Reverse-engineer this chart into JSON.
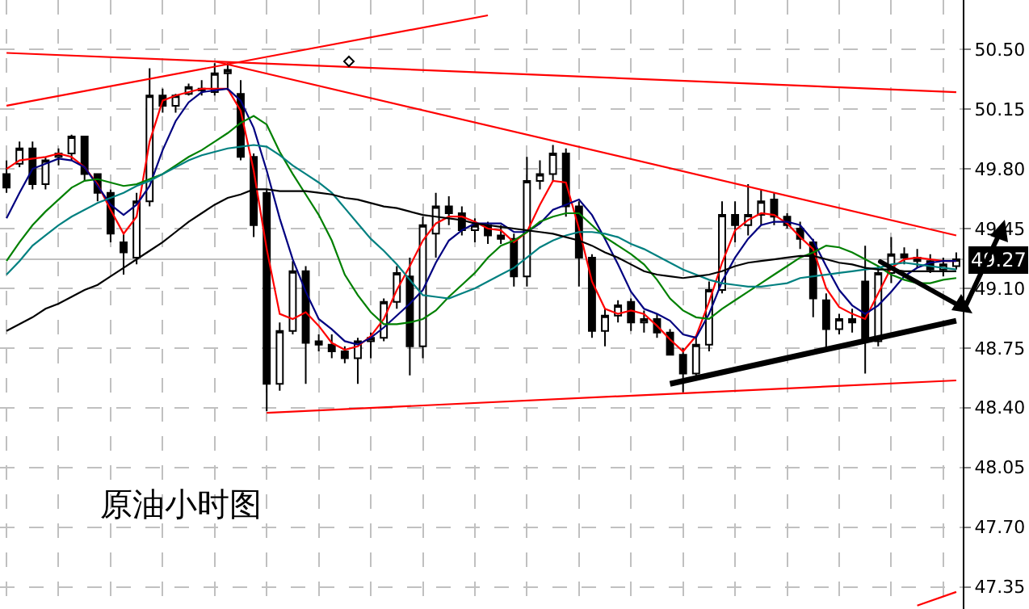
{
  "chart_data": {
    "type": "candlestick",
    "categories": [
      null,
      null,
      null,
      null,
      null,
      null,
      null,
      null,
      null,
      null,
      null,
      null,
      null,
      null,
      null,
      null,
      null,
      null,
      null,
      null,
      null,
      null,
      null,
      null,
      null,
      null,
      null,
      null,
      null,
      null,
      null,
      null,
      null,
      null,
      null,
      null,
      null,
      null,
      null,
      null,
      null,
      null,
      null,
      null,
      null,
      null,
      null,
      null,
      null,
      null,
      null,
      null,
      null,
      null,
      null,
      null,
      null,
      null,
      null,
      null,
      null,
      null,
      null,
      null,
      null,
      null,
      null,
      null,
      null,
      null,
      null,
      null,
      null,
      null
    ],
    "ohlc": [
      [
        49.77,
        49.85,
        49.66,
        49.69
      ],
      [
        49.83,
        49.96,
        49.81,
        49.92
      ],
      [
        49.92,
        49.96,
        49.68,
        49.71
      ],
      [
        49.71,
        49.87,
        49.68,
        49.85
      ],
      [
        49.87,
        49.92,
        49.82,
        49.89
      ],
      [
        49.89,
        50.0,
        49.85,
        49.99
      ],
      [
        49.99,
        49.99,
        49.73,
        49.77
      ],
      [
        49.77,
        49.77,
        49.61,
        49.66
      ],
      [
        49.66,
        49.68,
        49.37,
        49.42
      ],
      [
        49.37,
        49.42,
        49.18,
        49.31
      ],
      [
        49.28,
        49.66,
        49.24,
        49.61
      ],
      [
        49.61,
        50.39,
        49.58,
        50.23
      ],
      [
        50.23,
        50.27,
        50.13,
        50.17
      ],
      [
        50.17,
        50.24,
        50.13,
        50.23
      ],
      [
        50.24,
        50.3,
        50.23,
        50.28
      ],
      [
        50.27,
        50.32,
        50.23,
        50.26
      ],
      [
        50.25,
        50.42,
        50.23,
        50.36
      ],
      [
        50.36,
        50.42,
        50.26,
        50.38
      ],
      [
        50.24,
        50.32,
        49.85,
        49.87
      ],
      [
        49.87,
        49.89,
        49.4,
        49.47
      ],
      [
        49.66,
        49.68,
        48.38,
        48.54
      ],
      [
        48.54,
        48.9,
        48.5,
        48.85
      ],
      [
        48.85,
        49.26,
        48.83,
        49.2
      ],
      [
        49.2,
        49.23,
        48.54,
        48.78
      ],
      [
        48.79,
        48.83,
        48.73,
        48.77
      ],
      [
        48.77,
        48.83,
        48.69,
        48.73
      ],
      [
        48.73,
        48.76,
        48.66,
        48.69
      ],
      [
        48.69,
        48.81,
        48.54,
        48.79
      ],
      [
        48.79,
        48.84,
        48.69,
        48.81
      ],
      [
        48.81,
        49.04,
        48.79,
        49.02
      ],
      [
        49.02,
        49.23,
        48.98,
        49.19
      ],
      [
        49.17,
        49.28,
        48.59,
        48.76
      ],
      [
        48.76,
        49.52,
        48.69,
        49.47
      ],
      [
        49.42,
        49.66,
        49.28,
        49.58
      ],
      [
        49.58,
        49.64,
        49.47,
        49.54
      ],
      [
        49.54,
        49.58,
        49.41,
        49.44
      ],
      [
        49.44,
        49.51,
        49.37,
        49.47
      ],
      [
        49.47,
        49.49,
        49.36,
        49.41
      ],
      [
        49.41,
        49.47,
        49.36,
        49.39
      ],
      [
        49.39,
        49.42,
        49.11,
        49.17
      ],
      [
        49.17,
        49.87,
        49.11,
        49.73
      ],
      [
        49.73,
        49.85,
        49.68,
        49.77
      ],
      [
        49.77,
        49.94,
        49.73,
        49.89
      ],
      [
        49.89,
        49.92,
        49.52,
        49.58
      ],
      [
        49.58,
        49.61,
        49.11,
        49.28
      ],
      [
        49.28,
        49.3,
        48.81,
        48.85
      ],
      [
        48.85,
        48.98,
        48.76,
        48.94
      ],
      [
        48.94,
        49.03,
        48.9,
        49.0
      ],
      [
        49.02,
        49.04,
        48.85,
        48.9
      ],
      [
        48.9,
        48.97,
        48.84,
        48.92
      ],
      [
        48.92,
        48.95,
        48.81,
        48.84
      ],
      [
        48.84,
        48.86,
        48.71,
        48.71
      ],
      [
        48.71,
        48.75,
        48.49,
        48.6
      ],
      [
        48.6,
        48.81,
        48.56,
        48.77
      ],
      [
        48.77,
        49.14,
        48.73,
        49.09
      ],
      [
        49.09,
        49.61,
        49.07,
        49.53
      ],
      [
        49.53,
        49.61,
        49.37,
        49.47
      ],
      [
        49.47,
        49.71,
        49.41,
        49.53
      ],
      [
        49.53,
        49.68,
        49.47,
        49.61
      ],
      [
        49.62,
        49.66,
        49.47,
        49.52
      ],
      [
        49.52,
        49.54,
        49.45,
        49.47
      ],
      [
        49.45,
        49.49,
        49.33,
        49.39
      ],
      [
        49.37,
        49.39,
        48.93,
        49.04
      ],
      [
        49.03,
        49.07,
        48.73,
        48.86
      ],
      [
        48.86,
        48.95,
        48.83,
        48.92
      ],
      [
        48.92,
        48.98,
        48.84,
        48.9
      ],
      [
        49.14,
        49.35,
        48.6,
        48.79
      ],
      [
        48.79,
        49.23,
        48.76,
        49.19
      ],
      [
        49.19,
        49.4,
        49.13,
        49.3
      ],
      [
        49.3,
        49.34,
        49.24,
        49.28
      ],
      [
        49.28,
        49.33,
        49.22,
        49.26
      ],
      [
        49.26,
        49.3,
        49.19,
        49.21
      ],
      [
        49.21,
        49.28,
        49.17,
        49.24
      ],
      [
        49.23,
        49.31,
        49.21,
        49.27
      ]
    ],
    "series": [
      {
        "type": "line",
        "color": "#ff0000",
        "values": [
          49.8,
          49.85,
          49.86,
          49.87,
          49.89,
          49.87,
          49.81,
          49.71,
          49.56,
          49.42,
          49.52,
          49.96,
          50.2,
          50.23,
          50.25,
          50.27,
          50.27,
          50.27,
          50.14,
          49.79,
          49.33,
          48.95,
          48.92,
          48.96,
          48.88,
          48.78,
          48.74,
          48.76,
          48.82,
          48.92,
          49.09,
          49.23,
          49.38,
          49.48,
          49.52,
          49.52,
          49.49,
          49.45,
          49.44,
          49.37,
          49.43,
          49.59,
          49.73,
          49.72,
          49.45,
          49.14,
          48.98,
          48.95,
          48.97,
          48.95,
          48.88,
          48.8,
          48.73,
          48.82,
          49.02,
          49.25,
          49.44,
          49.5,
          49.54,
          49.53,
          49.48,
          49.4,
          49.33,
          49.1,
          48.99,
          48.95,
          48.92,
          49.07,
          49.22,
          49.27,
          49.28,
          49.27,
          49.26,
          49.26
        ]
      },
      {
        "type": "line",
        "color": "#000080",
        "values": [
          49.51,
          49.66,
          49.8,
          49.83,
          49.86,
          49.85,
          49.81,
          49.7,
          49.59,
          49.53,
          49.59,
          49.7,
          49.91,
          50.08,
          50.19,
          50.25,
          50.26,
          50.27,
          50.2,
          50.04,
          49.79,
          49.51,
          49.27,
          49.08,
          48.92,
          48.86,
          48.79,
          48.77,
          48.81,
          48.87,
          48.94,
          49.01,
          49.09,
          49.25,
          49.38,
          49.44,
          49.48,
          49.48,
          49.48,
          49.43,
          49.43,
          49.48,
          49.56,
          49.59,
          49.62,
          49.53,
          49.39,
          49.24,
          49.08,
          48.98,
          48.95,
          48.91,
          48.83,
          48.81,
          48.95,
          49.14,
          49.28,
          49.39,
          49.47,
          49.49,
          49.49,
          49.47,
          49.38,
          49.23,
          49.09,
          49.0,
          48.95,
          49.0,
          49.08,
          49.17,
          49.22,
          49.25,
          49.26,
          49.26
        ]
      },
      {
        "type": "line",
        "color": "#008000",
        "values": [
          49.26,
          49.37,
          49.47,
          49.55,
          49.62,
          49.69,
          49.73,
          49.74,
          49.72,
          49.7,
          49.71,
          49.74,
          49.77,
          49.82,
          49.87,
          49.91,
          49.96,
          50.01,
          50.07,
          50.11,
          50.06,
          49.9,
          49.77,
          49.65,
          49.53,
          49.38,
          49.18,
          49.06,
          48.96,
          48.89,
          48.89,
          48.9,
          48.92,
          48.97,
          49.05,
          49.12,
          49.19,
          49.28,
          49.35,
          49.38,
          49.43,
          49.49,
          49.52,
          49.54,
          49.54,
          49.47,
          49.4,
          49.35,
          49.3,
          49.24,
          49.15,
          49.04,
          48.97,
          48.93,
          48.92,
          48.98,
          49.03,
          49.08,
          49.13,
          49.18,
          49.23,
          49.28,
          49.31,
          49.35,
          49.34,
          49.31,
          49.27,
          49.23,
          49.18,
          49.15,
          49.13,
          49.13,
          49.15,
          49.16
        ]
      },
      {
        "type": "line",
        "color": "#008080",
        "values": [
          49.18,
          49.26,
          49.35,
          49.41,
          49.47,
          49.52,
          49.56,
          49.6,
          49.63,
          49.66,
          49.7,
          49.73,
          49.77,
          49.81,
          49.85,
          49.88,
          49.9,
          49.92,
          49.93,
          49.94,
          49.93,
          49.88,
          49.82,
          49.77,
          49.72,
          49.66,
          49.57,
          49.48,
          49.39,
          49.32,
          49.24,
          49.15,
          49.06,
          49.05,
          49.04,
          49.07,
          49.1,
          49.14,
          49.18,
          49.22,
          49.28,
          49.34,
          49.38,
          49.41,
          49.43,
          49.43,
          49.42,
          49.4,
          49.36,
          49.33,
          49.29,
          49.25,
          49.21,
          49.18,
          49.15,
          49.13,
          49.12,
          49.11,
          49.11,
          49.12,
          49.13,
          49.16,
          49.17,
          49.18,
          49.19,
          49.2,
          49.21,
          49.22,
          49.24,
          49.25,
          49.24,
          49.23,
          49.22,
          49.21
        ]
      },
      {
        "type": "line",
        "color": "#000000",
        "values": [
          48.85,
          48.89,
          48.93,
          48.98,
          49.01,
          49.05,
          49.09,
          49.12,
          49.17,
          49.22,
          49.27,
          49.32,
          49.37,
          49.43,
          49.49,
          49.54,
          49.59,
          49.63,
          49.65,
          49.68,
          49.68,
          49.67,
          49.67,
          49.67,
          49.66,
          49.65,
          49.63,
          49.62,
          49.6,
          49.58,
          49.57,
          49.55,
          49.53,
          49.52,
          49.51,
          49.5,
          49.48,
          49.47,
          49.46,
          49.45,
          49.44,
          49.43,
          49.42,
          49.4,
          49.38,
          49.35,
          49.31,
          49.28,
          49.24,
          49.2,
          49.18,
          49.17,
          49.16,
          49.17,
          49.18,
          49.2,
          49.23,
          49.25,
          49.26,
          49.27,
          49.28,
          49.29,
          49.29,
          49.27,
          49.25,
          49.24,
          49.22,
          49.21,
          49.21,
          49.2,
          49.2,
          49.2,
          49.2,
          49.2
        ]
      },
      {
        "type": "line",
        "color": "#ff0000",
        "values": [
          50.48,
          null,
          null,
          null,
          null,
          null,
          null,
          null,
          null,
          null,
          null,
          null,
          null,
          null,
          null,
          null,
          null,
          null,
          null,
          null,
          null,
          null,
          null,
          null,
          null,
          null,
          null,
          null,
          null,
          null,
          null,
          null,
          null,
          null,
          null,
          null,
          null,
          null,
          null,
          null,
          null,
          null,
          null,
          null,
          null,
          null,
          null,
          null,
          null,
          null,
          null,
          null,
          null,
          null,
          null,
          null,
          null,
          null,
          null,
          null,
          null,
          null,
          null,
          null,
          null,
          null,
          null,
          null,
          null,
          null,
          null,
          null,
          null,
          50.25
        ]
      },
      {
        "type": "line",
        "color": "#ff0000",
        "values": [
          50.17,
          null,
          null,
          null,
          null,
          null,
          null,
          null,
          null,
          null,
          null,
          null,
          null,
          null,
          null,
          null,
          null,
          null,
          null,
          null,
          null,
          null,
          null,
          null,
          null,
          null,
          null,
          null,
          null,
          null,
          null,
          null,
          null,
          null,
          null,
          null,
          null,
          50.7,
          null,
          null,
          null,
          null,
          null,
          null,
          null,
          null,
          null,
          null,
          null,
          null,
          null,
          null,
          null,
          null,
          null,
          null,
          null,
          null,
          null,
          null,
          null,
          null,
          null,
          null,
          null,
          null,
          null,
          null,
          null,
          null,
          null,
          null,
          null,
          null
        ]
      },
      {
        "type": "line",
        "color": "#ff0000",
        "values": [
          null,
          null,
          null,
          null,
          null,
          null,
          null,
          null,
          null,
          null,
          null,
          null,
          null,
          null,
          null,
          null,
          50.43,
          null,
          null,
          null,
          null,
          null,
          null,
          null,
          null,
          null,
          null,
          null,
          null,
          null,
          null,
          null,
          null,
          null,
          null,
          null,
          null,
          null,
          null,
          null,
          null,
          null,
          null,
          null,
          null,
          null,
          null,
          null,
          null,
          null,
          null,
          null,
          null,
          null,
          null,
          null,
          null,
          null,
          null,
          null,
          null,
          null,
          null,
          null,
          null,
          null,
          null,
          null,
          null,
          null,
          null,
          null,
          null,
          49.41
        ]
      },
      {
        "type": "line",
        "color": "#ff0000",
        "values": [
          null,
          null,
          null,
          null,
          null,
          null,
          null,
          null,
          null,
          null,
          null,
          null,
          null,
          null,
          null,
          null,
          null,
          null,
          null,
          null,
          48.37,
          null,
          null,
          null,
          null,
          null,
          null,
          null,
          null,
          null,
          null,
          null,
          null,
          null,
          null,
          null,
          null,
          null,
          null,
          null,
          null,
          null,
          null,
          null,
          null,
          null,
          null,
          null,
          null,
          null,
          null,
          null,
          null,
          null,
          null,
          null,
          null,
          null,
          null,
          null,
          null,
          null,
          null,
          null,
          null,
          null,
          null,
          null,
          null,
          null,
          null,
          null,
          null,
          48.56
        ]
      },
      {
        "type": "line",
        "color": "#ff0000",
        "values": [
          null,
          null,
          null,
          null,
          null,
          null,
          null,
          null,
          null,
          null,
          null,
          null,
          null,
          null,
          null,
          null,
          null,
          null,
          null,
          null,
          null,
          null,
          null,
          null,
          null,
          null,
          null,
          null,
          null,
          null,
          null,
          null,
          null,
          null,
          null,
          null,
          null,
          null,
          null,
          null,
          null,
          null,
          null,
          null,
          null,
          null,
          null,
          null,
          null,
          null,
          null,
          null,
          null,
          null,
          null,
          null,
          null,
          null,
          null,
          null,
          null,
          null,
          null,
          null,
          null,
          null,
          null,
          null,
          null,
          null,
          47.24,
          null,
          null,
          47.32
        ]
      },
      {
        "type": "line",
        "color": "#000000",
        "values": [
          null,
          null,
          null,
          null,
          null,
          null,
          null,
          null,
          null,
          null,
          null,
          null,
          null,
          null,
          null,
          null,
          null,
          null,
          null,
          null,
          null,
          null,
          null,
          null,
          null,
          null,
          null,
          null,
          null,
          null,
          null,
          null,
          null,
          null,
          null,
          null,
          null,
          null,
          null,
          null,
          null,
          null,
          null,
          null,
          null,
          null,
          null,
          null,
          null,
          null,
          null,
          48.54,
          null,
          null,
          null,
          null,
          null,
          null,
          null,
          null,
          null,
          null,
          null,
          null,
          null,
          null,
          null,
          null,
          null,
          null,
          null,
          null,
          null,
          48.91
        ]
      }
    ],
    "ylim": [
      47.22,
      50.79
    ],
    "yticks": [
      {
        "value": 50.5,
        "label": "50.50"
      },
      {
        "value": 50.15,
        "label": "50.15"
      },
      {
        "value": 49.8,
        "label": "49.80"
      },
      {
        "value": 49.45,
        "label": "49.45"
      },
      {
        "value": 49.1,
        "label": "49.10"
      },
      {
        "value": 48.75,
        "label": "48.75"
      },
      {
        "value": 48.4,
        "label": "48.40"
      },
      {
        "value": 48.05,
        "label": "48.05"
      },
      {
        "value": 47.7,
        "label": "47.70"
      },
      {
        "value": 47.35,
        "label": "47.35"
      }
    ],
    "grid": true,
    "ref_lines": [
      {
        "axis": "y",
        "value": 49.27,
        "label": "49.27",
        "color": "#c0c0c0"
      }
    ],
    "annotations": [
      "原油小时图"
    ]
  }
}
